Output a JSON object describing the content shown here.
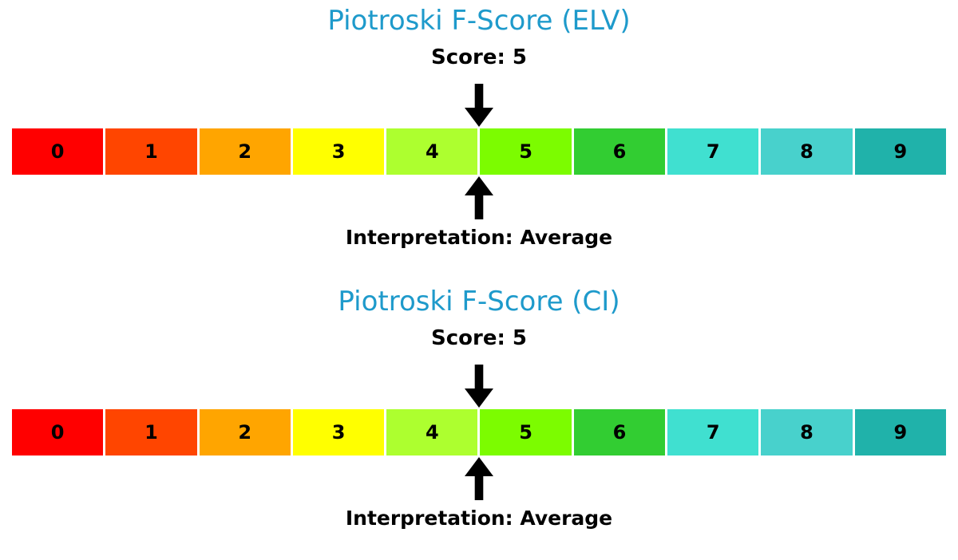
{
  "theme": {
    "background": "#FFFFFF",
    "title_color": "#1E9ACB",
    "text_color": "#000000",
    "arrow_color": "#000000",
    "segment_gap_color": "#FFFFFF"
  },
  "chart_data": [
    {
      "type": "bar",
      "variant": "score-scale-gauge",
      "title": "Piotroski F-Score (ELV)",
      "subtitle": "Score: 5",
      "score": 5,
      "annotation": "Interpretation: Average",
      "interpretation": "Average",
      "categories": [
        "0",
        "1",
        "2",
        "3",
        "4",
        "5",
        "6",
        "7",
        "8",
        "9"
      ],
      "colors": [
        "#FF0000",
        "#FF4500",
        "#FFA500",
        "#FFFF00",
        "#ADFF2F",
        "#7CFC00",
        "#32CD32",
        "#40E0D0",
        "#48D1CC",
        "#20B2AA"
      ],
      "xlim": [
        0,
        10
      ],
      "marker_value": 5,
      "grid": "off",
      "legend": "none"
    },
    {
      "type": "bar",
      "variant": "score-scale-gauge",
      "title": "Piotroski F-Score (CI)",
      "subtitle": "Score: 5",
      "score": 5,
      "annotation": "Interpretation: Average",
      "interpretation": "Average",
      "categories": [
        "0",
        "1",
        "2",
        "3",
        "4",
        "5",
        "6",
        "7",
        "8",
        "9"
      ],
      "colors": [
        "#FF0000",
        "#FF4500",
        "#FFA500",
        "#FFFF00",
        "#ADFF2F",
        "#7CFC00",
        "#32CD32",
        "#40E0D0",
        "#48D1CC",
        "#20B2AA"
      ],
      "xlim": [
        0,
        10
      ],
      "marker_value": 5,
      "grid": "off",
      "legend": "none"
    }
  ]
}
